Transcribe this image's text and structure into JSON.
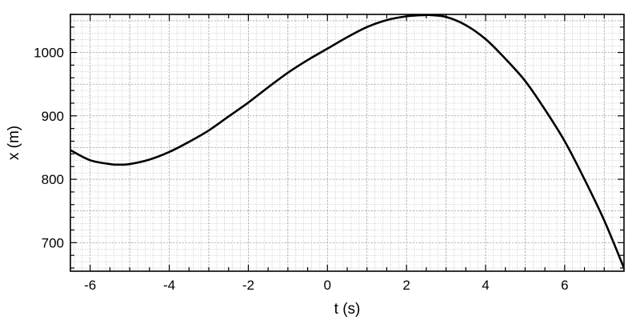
{
  "chart_data": {
    "type": "line",
    "title": "",
    "xlabel": "t (s)",
    "ylabel": "x (m)",
    "xlim": [
      -6.5,
      7.5
    ],
    "ylim": [
      655,
      1060
    ],
    "x_ticks": [
      -6,
      -4,
      -2,
      0,
      2,
      4,
      6
    ],
    "y_ticks": [
      700,
      800,
      900,
      1000
    ],
    "grid": true,
    "legend": "none",
    "colors": {
      "line": "#000000",
      "grid": "#b4b4b4",
      "frame": "#000000"
    },
    "series": [
      {
        "x": [
          -6.5,
          -6.0,
          -5.5,
          -5.3,
          -5.0,
          -4.5,
          -4.0,
          -3.5,
          -3.0,
          -2.5,
          -2.0,
          -1.5,
          -1.0,
          -0.5,
          0.0,
          0.5,
          1.0,
          1.5,
          2.0,
          2.5,
          2.6,
          3.0,
          3.5,
          4.0,
          4.5,
          5.0,
          5.5,
          6.0,
          6.5,
          7.0,
          7.5
        ],
        "y": [
          846,
          830,
          824,
          823,
          824,
          831,
          843,
          859,
          877,
          899,
          921,
          945,
          968,
          988,
          1006,
          1024,
          1040,
          1051,
          1057,
          1059,
          1059,
          1056,
          1043,
          1021,
          990,
          955,
          910,
          860,
          800,
          735,
          660
        ]
      }
    ]
  }
}
